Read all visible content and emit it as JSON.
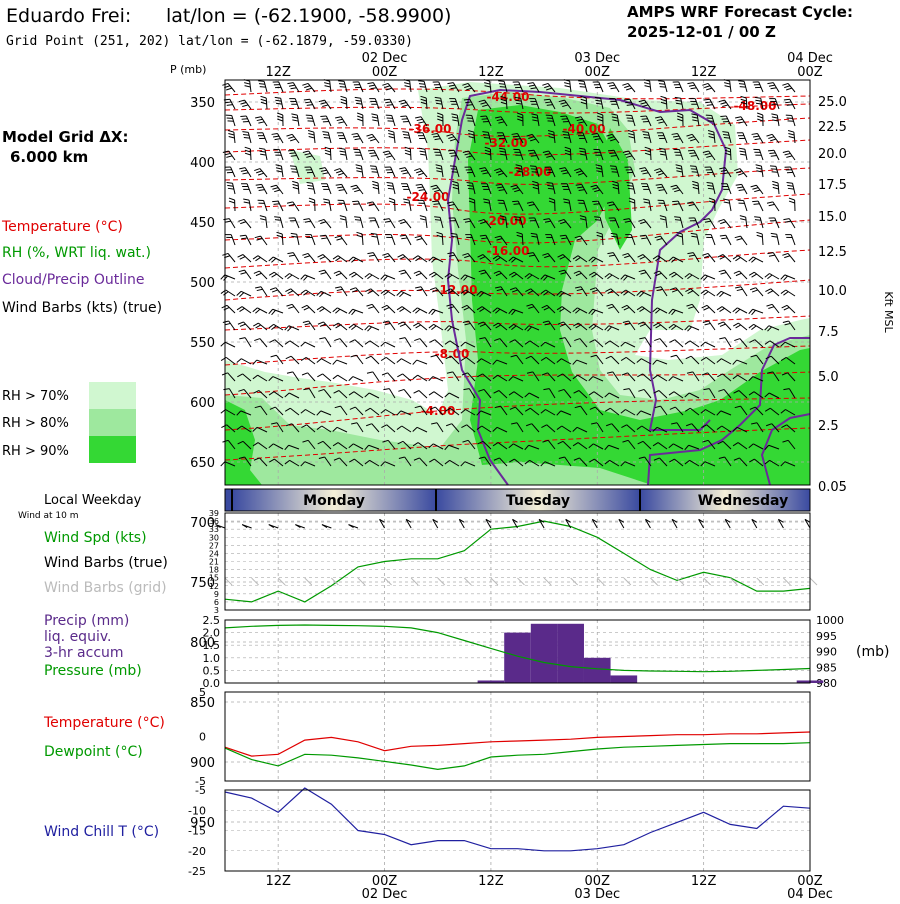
{
  "header": {
    "station": "Eduardo Frei:",
    "latlon": "lat/lon = (-62.1900, -58.9900)",
    "grid_point": "Grid Point (251, 202) lat/lon = (-62.1879, -59.0330)",
    "cycle_label": "AMPS WRF Forecast Cycle:",
    "cycle_value": "2025-12-01 / 00  Z"
  },
  "time_axis": {
    "top_dates": [
      "02 Dec",
      "03 Dec",
      "04 Dec"
    ],
    "top_hours": [
      "12Z",
      "00Z",
      "12Z",
      "00Z",
      "12Z",
      "00Z"
    ],
    "bottom_hours": [
      "12Z",
      "00Z",
      "12Z",
      "00Z",
      "12Z",
      "00Z"
    ],
    "bottom_dates": [
      "02 Dec",
      "03 Dec",
      "04 Dec"
    ],
    "days": [
      "Monday",
      "Tuesday",
      "Wednesday"
    ],
    "local_weekday_label": "Local Weekday",
    "wind_at_10m_label": "Wind at 10 m"
  },
  "legend": {
    "grid_label": "Model Grid ΔX:",
    "grid_value": "6.000 km",
    "temperature": "Temperature (°C)",
    "rh": "RH (%, WRT liq. wat.)",
    "cloud": "Cloud/Precip Outline",
    "wind": "Wind Barbs (kts) (true)",
    "rh_levels": [
      "RH > 70%",
      "RH > 80%",
      "RH > 90%"
    ],
    "colors": {
      "temperature": "#e00000",
      "rh": "#009900",
      "cloud": "#6a2a9a",
      "rh70": "#d0f7d0",
      "rh80": "#9ee89e",
      "rh90": "#34d834",
      "precip": "#5a2a8a",
      "wind_chill": "#2020a0"
    }
  },
  "chart_data": [
    {
      "type": "heatmap",
      "name": "Vertical cross-section",
      "pressure_label": "P (mb)",
      "height_label": "Kft MSL",
      "pressure_levels": [
        350,
        400,
        450,
        500,
        550,
        600,
        650,
        700,
        750,
        800,
        850,
        900,
        950
      ],
      "height_ticks": [
        "25.0",
        "22.5",
        "20.0",
        "17.5",
        "15.0",
        "12.5",
        "10.0",
        "7.5",
        "5.0",
        "2.5",
        "0.05"
      ],
      "isotherm_labels": [
        "-44.00",
        "-48.00",
        "-36.00",
        "-40.00",
        "-32.00",
        "-28.00",
        "-24.00",
        "-20.00",
        "-16.00",
        "-12.00",
        "-8.00",
        "-4.00"
      ]
    },
    {
      "type": "line",
      "name": "Wind speed at 10 m",
      "labels": [
        "Wind Spd (kts)",
        "Wind Barbs (true)",
        "Wind Barbs (grid)"
      ],
      "y_ticks": [
        3,
        6,
        9,
        12,
        15,
        18,
        21,
        24,
        27,
        30,
        33,
        36,
        39
      ],
      "ylim": [
        3,
        39
      ],
      "xlim": [
        6,
        72
      ],
      "x": [
        6,
        9,
        12,
        15,
        18,
        21,
        24,
        27,
        30,
        33,
        36,
        39,
        42,
        45,
        48,
        51,
        54,
        57,
        60,
        63,
        66,
        69,
        72
      ],
      "values": [
        7,
        6,
        10,
        6,
        12,
        19,
        21,
        22,
        22,
        25,
        33,
        34,
        36,
        34,
        30,
        24,
        18,
        14,
        17,
        15,
        10,
        10,
        11
      ]
    },
    {
      "type": "bar",
      "name": "Precip and pressure",
      "labels": [
        "Precip (mm)",
        "liq. equiv.",
        "3-hr accum",
        "Pressure (mb)"
      ],
      "pressure_unit": "(mb)",
      "y_ticks_left": [
        "2.5",
        "2.0",
        "1.5",
        "1.0",
        "0.5",
        "0.0"
      ],
      "y_ticks_right": [
        "1000",
        "995",
        "990",
        "985",
        "980"
      ],
      "ylim_left": [
        0,
        2.5
      ],
      "ylim_right": [
        980,
        1000
      ],
      "precip_x": [
        36,
        39,
        42,
        45,
        48,
        51,
        72
      ],
      "precip_values": [
        0.1,
        2.0,
        2.35,
        2.35,
        1.0,
        0.3,
        0.1
      ],
      "pressure_x": [
        6,
        9,
        12,
        15,
        18,
        21,
        24,
        27,
        30,
        33,
        36,
        39,
        42,
        45,
        48,
        51,
        54,
        57,
        60,
        63,
        66,
        69,
        72
      ],
      "pressure_values": [
        997.5,
        998,
        998.3,
        998.4,
        998.3,
        998.2,
        998,
        997.5,
        996,
        993.5,
        991,
        988.5,
        986.5,
        985.2,
        984.5,
        984,
        983.8,
        983.7,
        983.6,
        983.7,
        984,
        984.3,
        984.6
      ]
    },
    {
      "type": "line",
      "name": "Temperature and dewpoint",
      "labels": [
        "Temperature (°C)",
        "Dewpoint (°C)"
      ],
      "y_ticks": [
        "5",
        "0",
        "-5"
      ],
      "ylim": [
        -5,
        5
      ],
      "x": [
        6,
        9,
        12,
        15,
        18,
        21,
        24,
        27,
        30,
        33,
        36,
        39,
        42,
        45,
        48,
        51,
        54,
        57,
        60,
        63,
        66,
        69,
        72
      ],
      "series": [
        {
          "name": "Temperature (°C)",
          "values": [
            -1.2,
            -2.2,
            -2.0,
            -0.4,
            -0.1,
            -0.6,
            -1.6,
            -1.1,
            -1.0,
            -0.8,
            -0.6,
            -0.5,
            -0.4,
            -0.3,
            -0.1,
            0.0,
            0.1,
            0.2,
            0.2,
            0.3,
            0.3,
            0.4,
            0.5
          ]
        },
        {
          "name": "Dewpoint (°C)",
          "values": [
            -1.3,
            -2.6,
            -3.3,
            -2.0,
            -2.1,
            -2.4,
            -2.8,
            -3.2,
            -3.7,
            -3.3,
            -2.3,
            -2.1,
            -2.0,
            -1.7,
            -1.4,
            -1.2,
            -1.1,
            -1.0,
            -0.9,
            -0.8,
            -0.8,
            -0.8,
            -0.7
          ]
        }
      ]
    },
    {
      "type": "line",
      "name": "Wind chill",
      "labels": [
        "Wind Chill T (°C)"
      ],
      "y_ticks": [
        "-5",
        "-10",
        "-15",
        "-20",
        "-25"
      ],
      "ylim": [
        -25,
        -5
      ],
      "x": [
        6,
        9,
        12,
        15,
        18,
        21,
        24,
        27,
        30,
        33,
        36,
        39,
        42,
        45,
        48,
        51,
        54,
        57,
        60,
        63,
        66,
        69,
        72
      ],
      "values": [
        -5.5,
        -7,
        -10.5,
        -4.5,
        -8.5,
        -15,
        -16,
        -18.5,
        -17.5,
        -17.5,
        -19.5,
        -19.5,
        -20,
        -20,
        -19.5,
        -18.5,
        -15.5,
        -13,
        -10.5,
        -13.5,
        -14.5,
        -9,
        -9.5
      ]
    }
  ]
}
